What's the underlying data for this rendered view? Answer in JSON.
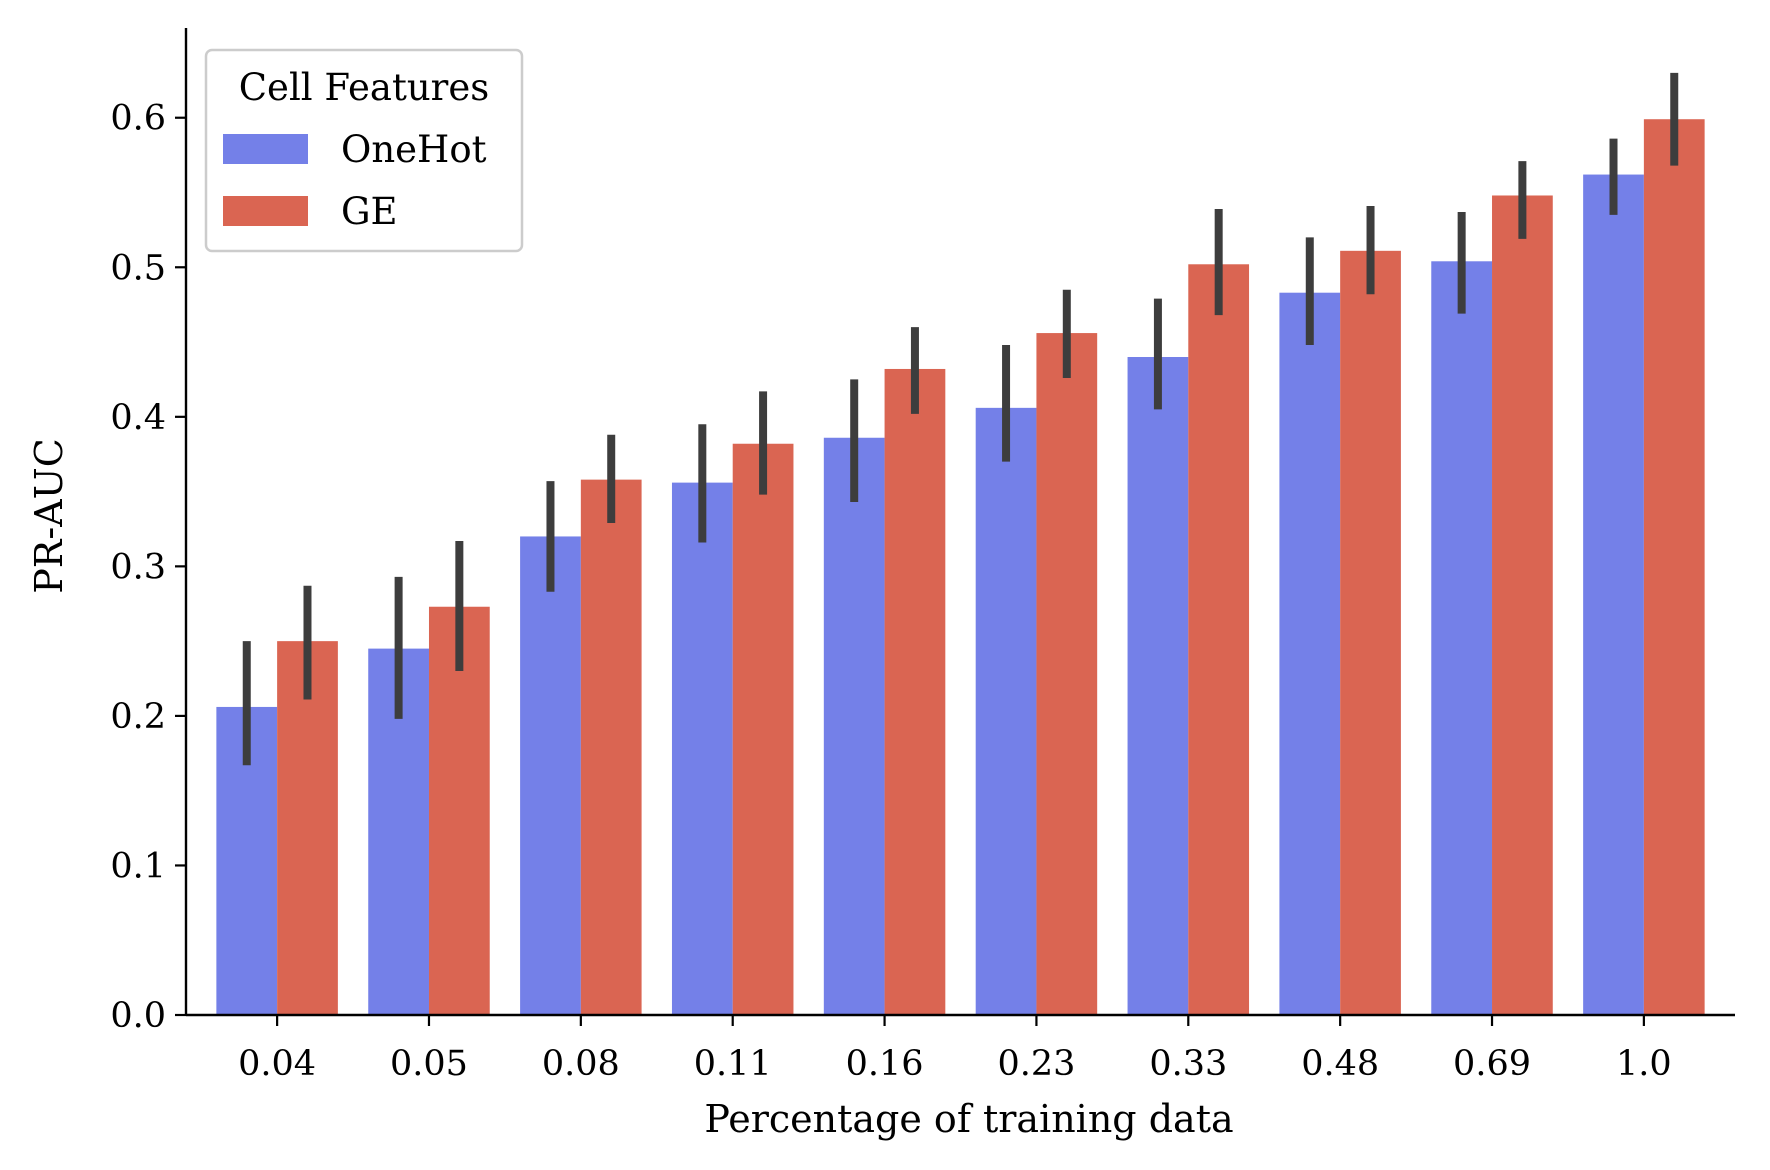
{
  "chart_data": {
    "type": "bar",
    "title": "",
    "xlabel": "Percentage of training data",
    "ylabel": "PR-AUC",
    "ylim": [
      0,
      0.66
    ],
    "yticks": [
      0.0,
      0.1,
      0.2,
      0.3,
      0.4,
      0.5,
      0.6
    ],
    "ytick_labels": [
      "0.0",
      "0.1",
      "0.2",
      "0.3",
      "0.4",
      "0.5",
      "0.6"
    ],
    "categories": [
      "0.04",
      "0.05",
      "0.08",
      "0.11",
      "0.16",
      "0.23",
      "0.33",
      "0.48",
      "0.69",
      "1.0"
    ],
    "grid": false,
    "legend": {
      "title": "Cell Features",
      "placement": "top-left"
    },
    "series": [
      {
        "name": "OneHot",
        "color": "#7480e8",
        "values": [
          0.206,
          0.245,
          0.32,
          0.356,
          0.386,
          0.406,
          0.44,
          0.483,
          0.504,
          0.562
        ],
        "err_low": [
          0.167,
          0.198,
          0.283,
          0.316,
          0.343,
          0.37,
          0.405,
          0.448,
          0.469,
          0.535
        ],
        "err_high": [
          0.25,
          0.293,
          0.357,
          0.395,
          0.425,
          0.448,
          0.479,
          0.52,
          0.537,
          0.586
        ]
      },
      {
        "name": "GE",
        "color": "#da6552",
        "values": [
          0.25,
          0.273,
          0.358,
          0.382,
          0.432,
          0.456,
          0.502,
          0.511,
          0.548,
          0.599
        ],
        "err_low": [
          0.211,
          0.23,
          0.329,
          0.348,
          0.402,
          0.426,
          0.468,
          0.482,
          0.519,
          0.568
        ],
        "err_high": [
          0.287,
          0.317,
          0.388,
          0.417,
          0.46,
          0.485,
          0.539,
          0.541,
          0.571,
          0.63
        ]
      }
    ],
    "error_bar_color": "#3d3d3d"
  }
}
